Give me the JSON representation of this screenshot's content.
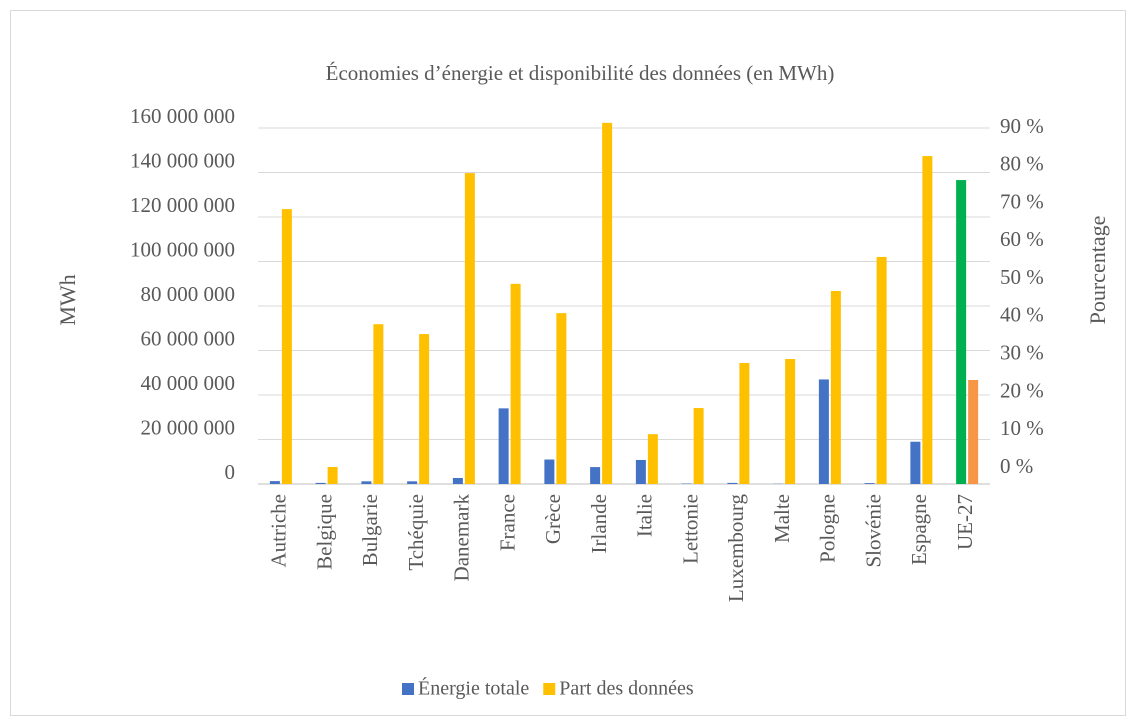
{
  "chart_data": {
    "type": "bar",
    "title": "Économies d’énergie et disponibilité des données (en MWh)",
    "y_label": "MWh",
    "y2_label": "Pourcentage",
    "categories": [
      "Autriche",
      "Belgique",
      "Bulgarie",
      "Tchéquie",
      "Danemark",
      "France",
      "Grèce",
      "Irlande",
      "Italie",
      "Lettonie",
      "Luxembourg",
      "Malte",
      "Pologne",
      "Slovénie",
      "Espagne",
      "UE-27"
    ],
    "series": [
      {
        "name": "Énergie totale",
        "color": "#4472c4",
        "colors": [
          "#4472c4",
          "#4472c4",
          "#4472c4",
          "#4472c4",
          "#4472c4",
          "#4472c4",
          "#4472c4",
          "#4472c4",
          "#4472c4",
          "#4472c4",
          "#4472c4",
          "#4472c4",
          "#4472c4",
          "#4472c4",
          "#4472c4",
          "#00b050"
        ],
        "values": [
          1300000,
          500000,
          1200000,
          1200000,
          2700000,
          34000000,
          11000000,
          7600000,
          10800000,
          200000,
          500000,
          100000,
          47000000,
          400000,
          19000000,
          136600000
        ]
      },
      {
        "name": "Part des données",
        "color": "#ffc000",
        "axis": "y2",
        "colors": [
          "#ffc000",
          "#ffc000",
          "#ffc000",
          "#ffc000",
          "#ffc000",
          "#ffc000",
          "#ffc000",
          "#ffc000",
          "#ffc000",
          "#ffc000",
          "#ffc000",
          "#ffc000",
          "#ffc000",
          "#ffc000",
          "#ffc000",
          "#f79646"
        ],
        "values": [
          69.5,
          4.3,
          40.4,
          37.9,
          78.6,
          50.6,
          43.2,
          91.3,
          12.6,
          19.2,
          30.6,
          31.6,
          48.8,
          57.4,
          82.9,
          26.3
        ]
      }
    ],
    "ylim": [
      0,
      160000000
    ],
    "yticks": [
      0,
      {
        "value": 20000000,
        "label": "20 000 000"
      },
      {
        "value": 40000000,
        "label": "40 000 000"
      },
      {
        "value": 60000000,
        "label": "60 000 000"
      },
      {
        "value": 80000000,
        "label": "80 000 000"
      },
      {
        "value": 100000000,
        "label": "100 000 000"
      },
      {
        "value": 120000000,
        "label": "120 000 000"
      },
      {
        "value": 140000000,
        "label": "140 000 000"
      },
      {
        "value": 160000000,
        "label": "160 000 000"
      }
    ],
    "y2lim": [
      0,
      90
    ],
    "y2ticks": [
      {
        "value": 0,
        "label": "0 %"
      },
      {
        "value": 10,
        "label": "10 %"
      },
      {
        "value": 20,
        "label": "20 %"
      },
      {
        "value": 30,
        "label": "30 %"
      },
      {
        "value": 40,
        "label": "40 %"
      },
      {
        "value": 50,
        "label": "50 %"
      },
      {
        "value": 60,
        "label": "60 %"
      },
      {
        "value": 70,
        "label": "70 %"
      },
      {
        "value": 80,
        "label": "80 %"
      },
      {
        "value": 90,
        "label": "90 %"
      }
    ],
    "grid": true,
    "legend": "bottom"
  }
}
